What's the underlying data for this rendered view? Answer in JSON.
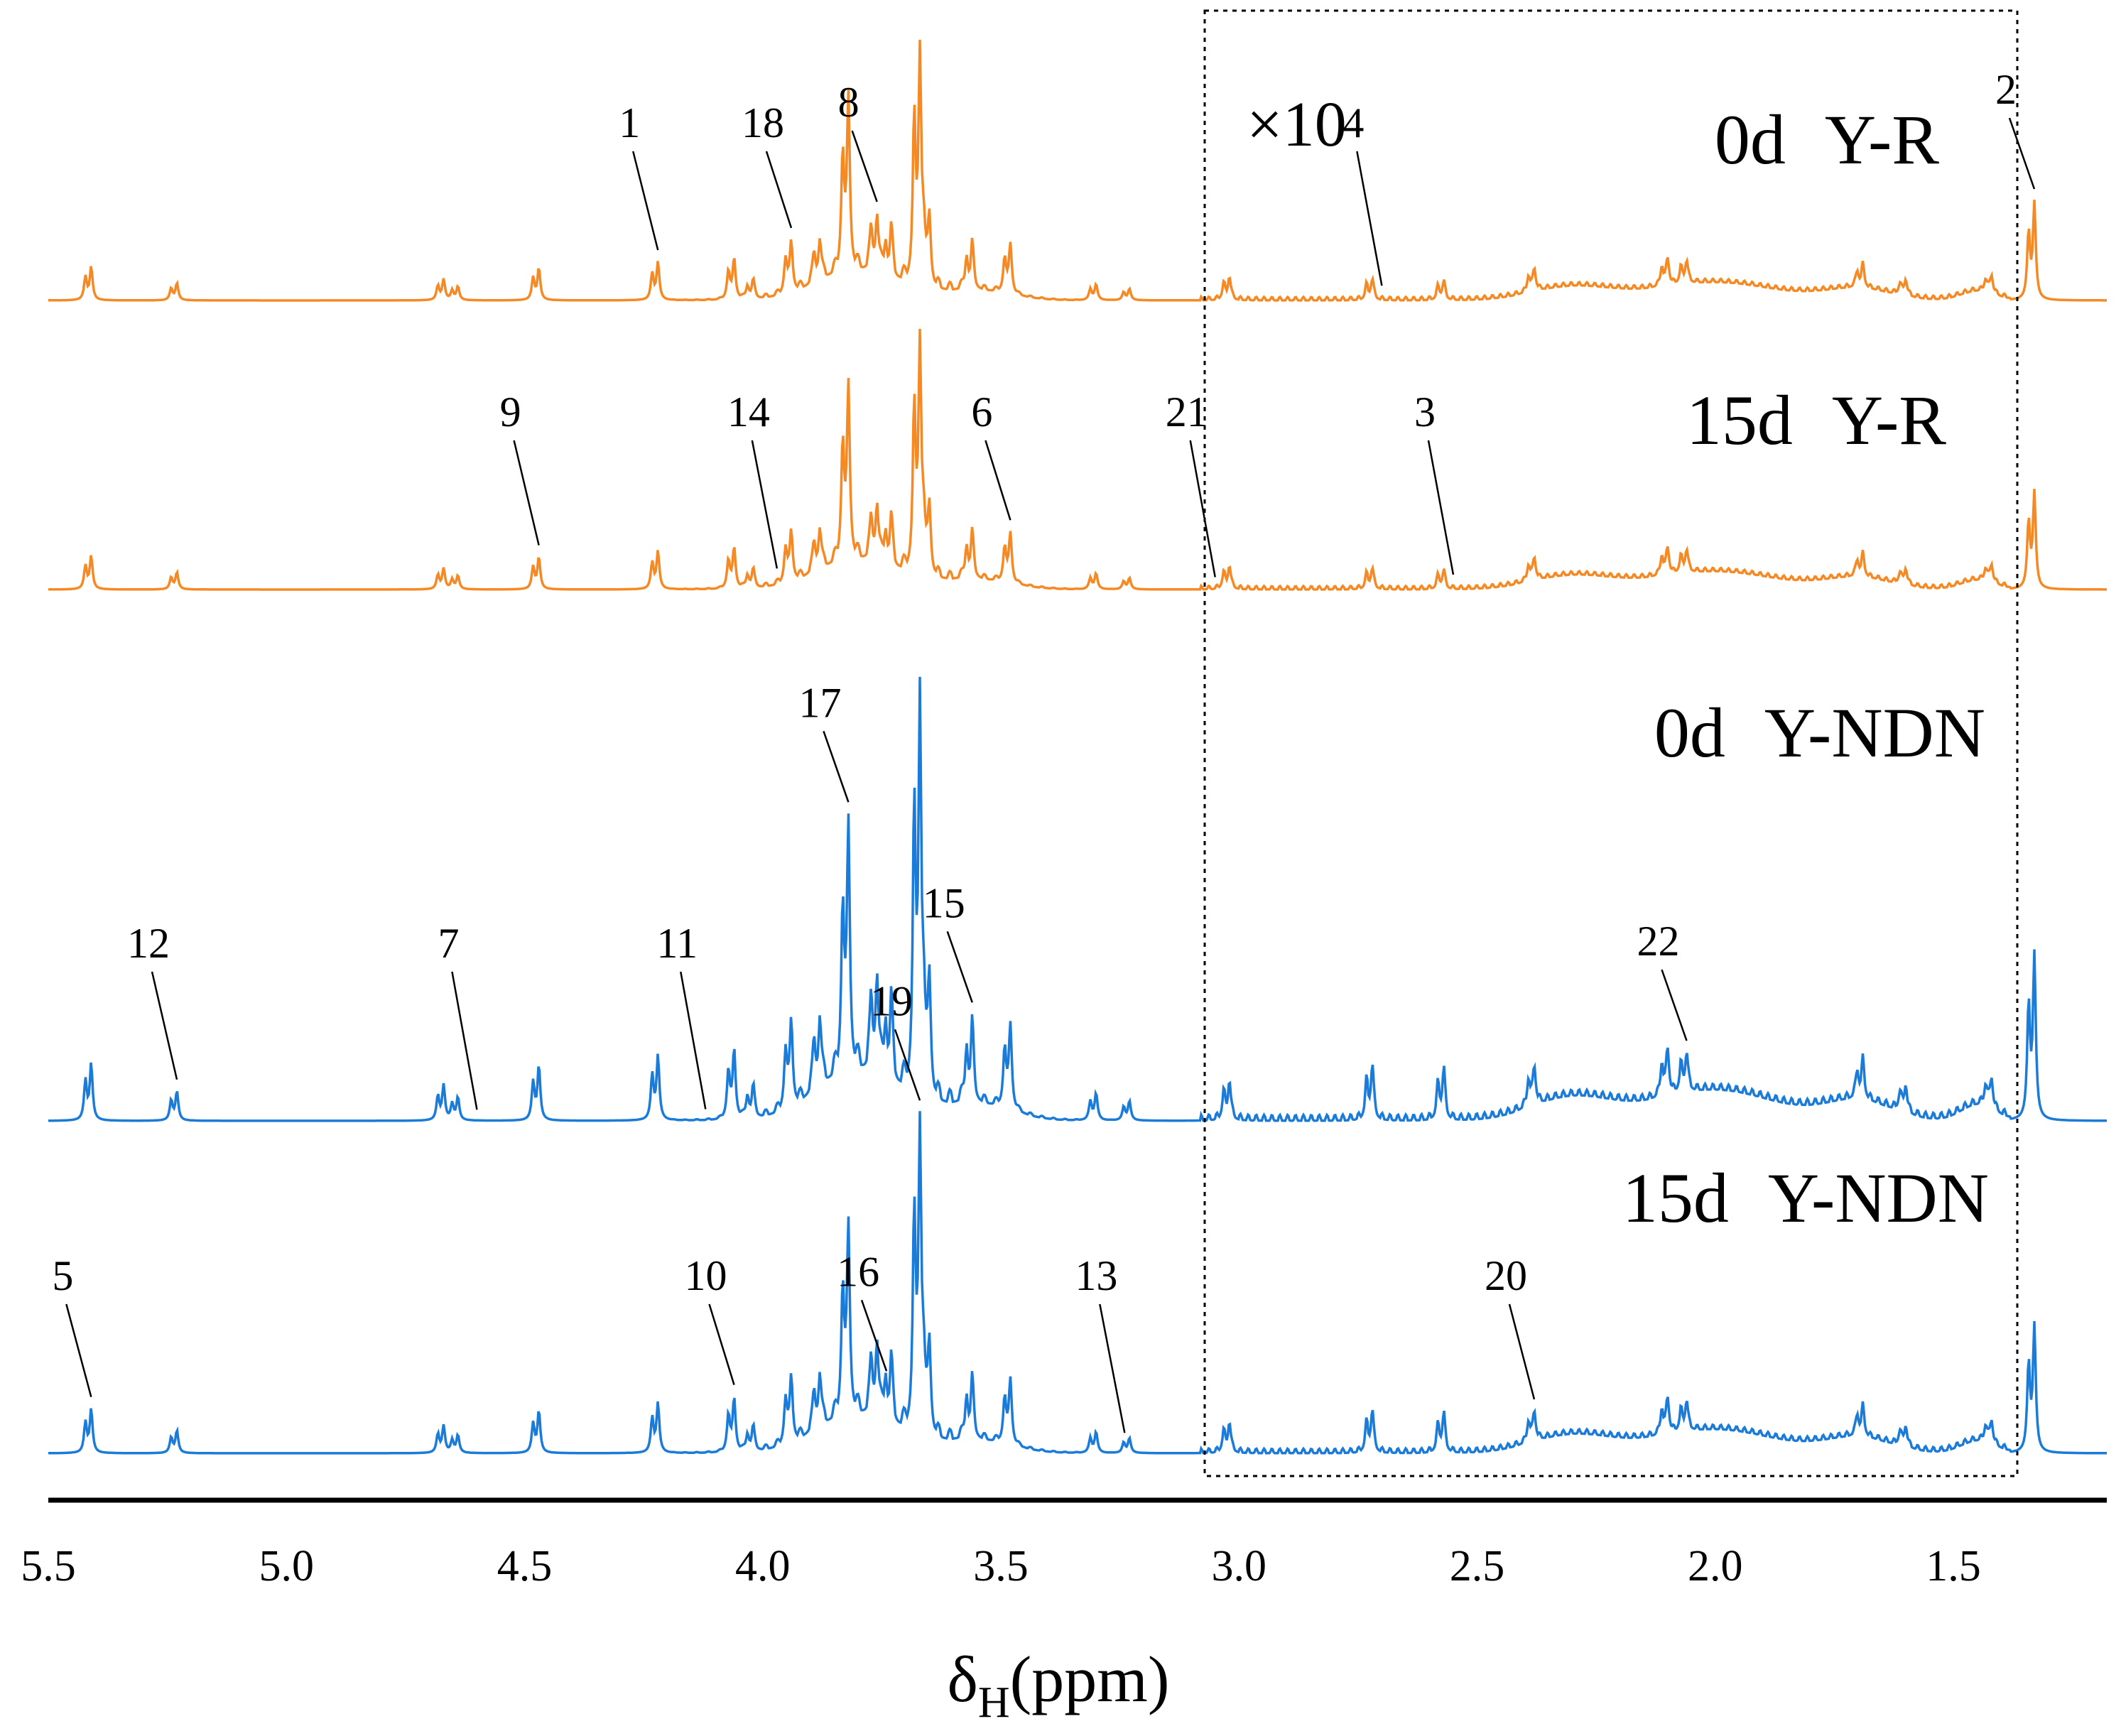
{
  "chart_data": {
    "type": "line",
    "title": "",
    "xlabel": "δH(ppm)",
    "xlabel_main": "δ",
    "xlabel_sub": "H",
    "xlabel_tail": "(ppm)",
    "xlim": [
      5.5,
      1.2
    ],
    "x_reversed": true,
    "xticks": [
      5.5,
      5.0,
      4.5,
      4.0,
      3.5,
      3.0,
      2.5,
      2.0,
      1.5
    ],
    "xtick_labels": [
      "5.5",
      "5.0",
      "4.5",
      "4.0",
      "3.5",
      "3.0",
      "2.5",
      "2.0",
      "1.5"
    ],
    "zoom_region": {
      "from_ppm": 3.08,
      "to_ppm": 1.38,
      "label": "×10"
    },
    "colors": {
      "orange": "#F58A24",
      "blue": "#1A7BD9",
      "axis": "#000000"
    },
    "series": [
      {
        "name": "0d Y-R",
        "label_a": "0d",
        "label_b": "Y-R",
        "color": "#F58A24"
      },
      {
        "name": "15d Y-R",
        "label_a": "15d",
        "label_b": "Y-R",
        "color": "#F58A24"
      },
      {
        "name": "0d Y-NDN",
        "label_a": "0d",
        "label_b": "Y-NDN",
        "color": "#1A7BD9"
      },
      {
        "name": "15d Y-NDN",
        "label_a": "15d",
        "label_b": "Y-NDN",
        "color": "#1A7BD9"
      }
    ],
    "peaks": [
      {
        "ppm": 5.41,
        "h": 0.145
      },
      {
        "ppm": 5.23,
        "h": 0.075
      },
      {
        "ppm": 4.67,
        "h": 0.09
      },
      {
        "ppm": 4.64,
        "h": 0.06
      },
      {
        "ppm": 4.47,
        "h": 0.14
      },
      {
        "ppm": 4.22,
        "h": 0.165
      },
      {
        "ppm": 4.06,
        "h": 0.18
      },
      {
        "ppm": 4.02,
        "h": 0.08
      },
      {
        "ppm": 3.94,
        "h": 0.22
      },
      {
        "ppm": 3.88,
        "h": 0.18
      },
      {
        "ppm": 3.82,
        "h": 0.62
      },
      {
        "ppm": 3.76,
        "h": 0.25
      },
      {
        "ppm": 3.73,
        "h": 0.2
      },
      {
        "ppm": 3.67,
        "h": 1.0
      },
      {
        "ppm": 3.65,
        "h": 0.3
      },
      {
        "ppm": 3.56,
        "h": 0.2
      },
      {
        "ppm": 3.48,
        "h": 0.22
      },
      {
        "ppm": 3.3,
        "h": 0.07
      },
      {
        "ppm": 3.23,
        "h": 0.05
      },
      {
        "ppm": 3.02,
        "h": 0.1
      },
      {
        "ppm": 2.72,
        "h": 0.09
      },
      {
        "ppm": 2.57,
        "h": 0.08
      },
      {
        "ppm": 2.38,
        "h": 0.1
      },
      {
        "ppm": 2.1,
        "h": 0.12
      },
      {
        "ppm": 2.06,
        "h": 0.1
      },
      {
        "ppm": 1.69,
        "h": 0.1
      },
      {
        "ppm": 1.6,
        "h": 0.07
      },
      {
        "ppm": 1.42,
        "h": 0.08
      },
      {
        "ppm": 1.33,
        "h": 0.42
      }
    ],
    "annotations": [
      {
        "text": "1",
        "series": "0d Y-R",
        "ppm": 4.22
      },
      {
        "text": "18",
        "series": "0d Y-R",
        "ppm": 3.94
      },
      {
        "text": "8",
        "series": "0d Y-R",
        "ppm": 3.76
      },
      {
        "text": "4",
        "series": "0d Y-R",
        "ppm": 2.7
      },
      {
        "text": "2",
        "series": "0d Y-R",
        "ppm": 1.33
      },
      {
        "text": "9",
        "series": "15d Y-R",
        "ppm": 4.47
      },
      {
        "text": "14",
        "series": "15d Y-R",
        "ppm": 3.97
      },
      {
        "text": "6",
        "series": "15d Y-R",
        "ppm": 3.48
      },
      {
        "text": "21",
        "series": "15d Y-R",
        "ppm": 3.05
      },
      {
        "text": "3",
        "series": "15d Y-R",
        "ppm": 2.55
      },
      {
        "text": "12",
        "series": "0d Y-NDN",
        "ppm": 5.23
      },
      {
        "text": "7",
        "series": "0d Y-NDN",
        "ppm": 4.6
      },
      {
        "text": "11",
        "series": "0d Y-NDN",
        "ppm": 4.12
      },
      {
        "text": "17",
        "series": "0d Y-NDN",
        "ppm": 3.82
      },
      {
        "text": "15",
        "series": "0d Y-NDN",
        "ppm": 3.56
      },
      {
        "text": "22",
        "series": "0d Y-NDN",
        "ppm": 2.06
      },
      {
        "text": "5",
        "series": "15d Y-NDN",
        "ppm": 5.41
      },
      {
        "text": "10",
        "series": "15d Y-NDN",
        "ppm": 4.06
      },
      {
        "text": "16",
        "series": "15d Y-NDN",
        "ppm": 3.74
      },
      {
        "text": "19",
        "series": "15d Y-NDN",
        "ppm": 3.67
      },
      {
        "text": "13",
        "series": "15d Y-NDN",
        "ppm": 3.24
      },
      {
        "text": "20",
        "series": "15d Y-NDN",
        "ppm": 2.38
      }
    ]
  }
}
